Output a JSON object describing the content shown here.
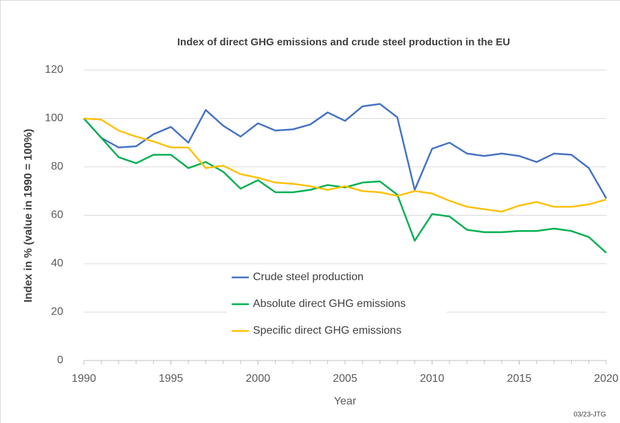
{
  "chart_data": {
    "type": "line",
    "title": "Index of direct GHG emissions and crude steel production in the EU",
    "x_label": "Year",
    "y_label": "Index in %  (value in 1990 = 100%)",
    "annotation": "03/23-JTG",
    "x": [
      1990,
      1991,
      1992,
      1993,
      1994,
      1995,
      1996,
      1997,
      1998,
      1999,
      2000,
      2001,
      2002,
      2003,
      2004,
      2005,
      2006,
      2007,
      2008,
      2009,
      2010,
      2011,
      2012,
      2013,
      2014,
      2015,
      2016,
      2017,
      2018,
      2019,
      2020
    ],
    "series": [
      {
        "name": "Crude steel production",
        "color": "#4472c4",
        "values": [
          100,
          92,
          88,
          88.5,
          93.5,
          96.5,
          90,
          103.5,
          97,
          92.5,
          98,
          95,
          95.5,
          97.5,
          102.5,
          99,
          105,
          106,
          100.5,
          70.5,
          87.5,
          90,
          85.5,
          84.5,
          85.5,
          84.5,
          82,
          85.5,
          85,
          79.5,
          67
        ]
      },
      {
        "name": "Absolute direct GHG emissions",
        "color": "#00b050",
        "values": [
          100,
          92,
          84,
          81.5,
          85,
          85,
          79.5,
          82,
          78,
          71,
          74.5,
          69.5,
          69.5,
          70.5,
          72.5,
          71.5,
          73.5,
          74,
          68.5,
          49.5,
          60.5,
          59.5,
          54,
          53,
          53,
          53.5,
          53.5,
          54.5,
          53.5,
          51,
          44.5
        ]
      },
      {
        "name": "Specific direct GHG emissions",
        "color": "#ffc000",
        "values": [
          100,
          99.5,
          95,
          92.5,
          90.5,
          88,
          88,
          79.5,
          80.5,
          77,
          75.5,
          73.5,
          73,
          72,
          70.5,
          72,
          70,
          69.5,
          68,
          70,
          69,
          66,
          63.5,
          62.5,
          61.5,
          64,
          65.5,
          63.5,
          63.5,
          64.5,
          66.5
        ]
      }
    ],
    "xlim": [
      1990,
      2020
    ],
    "xticks": [
      1990,
      1995,
      2000,
      2005,
      2010,
      2015,
      2020
    ],
    "ylim": [
      0,
      120
    ],
    "yticks": [
      0,
      20,
      40,
      60,
      80,
      100,
      120
    ],
    "grid": true,
    "legend": "center"
  }
}
